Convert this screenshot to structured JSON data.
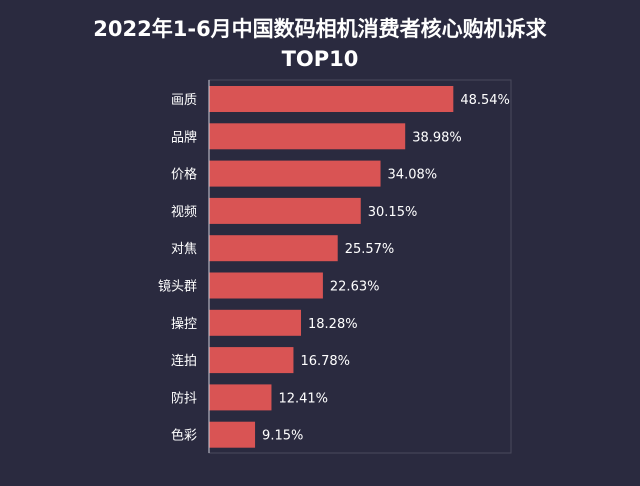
{
  "chart_data": {
    "type": "bar",
    "orientation": "horizontal",
    "title_line1": "2022年1-6月中国数码相机消费者核心购机诉求",
    "title_line2": "TOP10",
    "categories": [
      "画质",
      "品牌",
      "价格",
      "视频",
      "对焦",
      "镜头群",
      "操控",
      "连拍",
      "防抖",
      "色彩"
    ],
    "values": [
      48.54,
      38.98,
      34.08,
      30.15,
      25.57,
      22.63,
      18.28,
      16.78,
      12.41,
      9.15
    ],
    "value_labels": [
      "48.54%",
      "38.98%",
      "34.08%",
      "30.15%",
      "25.57%",
      "22.63%",
      "18.28%",
      "16.78%",
      "12.41%",
      "9.15%"
    ],
    "xlim": [
      0,
      60
    ],
    "grid": false,
    "legend": "none",
    "colors": {
      "background": "#2a2a3f",
      "bar": "#d95454",
      "text": "#ffffff",
      "frame": "#4a4a5c"
    }
  }
}
